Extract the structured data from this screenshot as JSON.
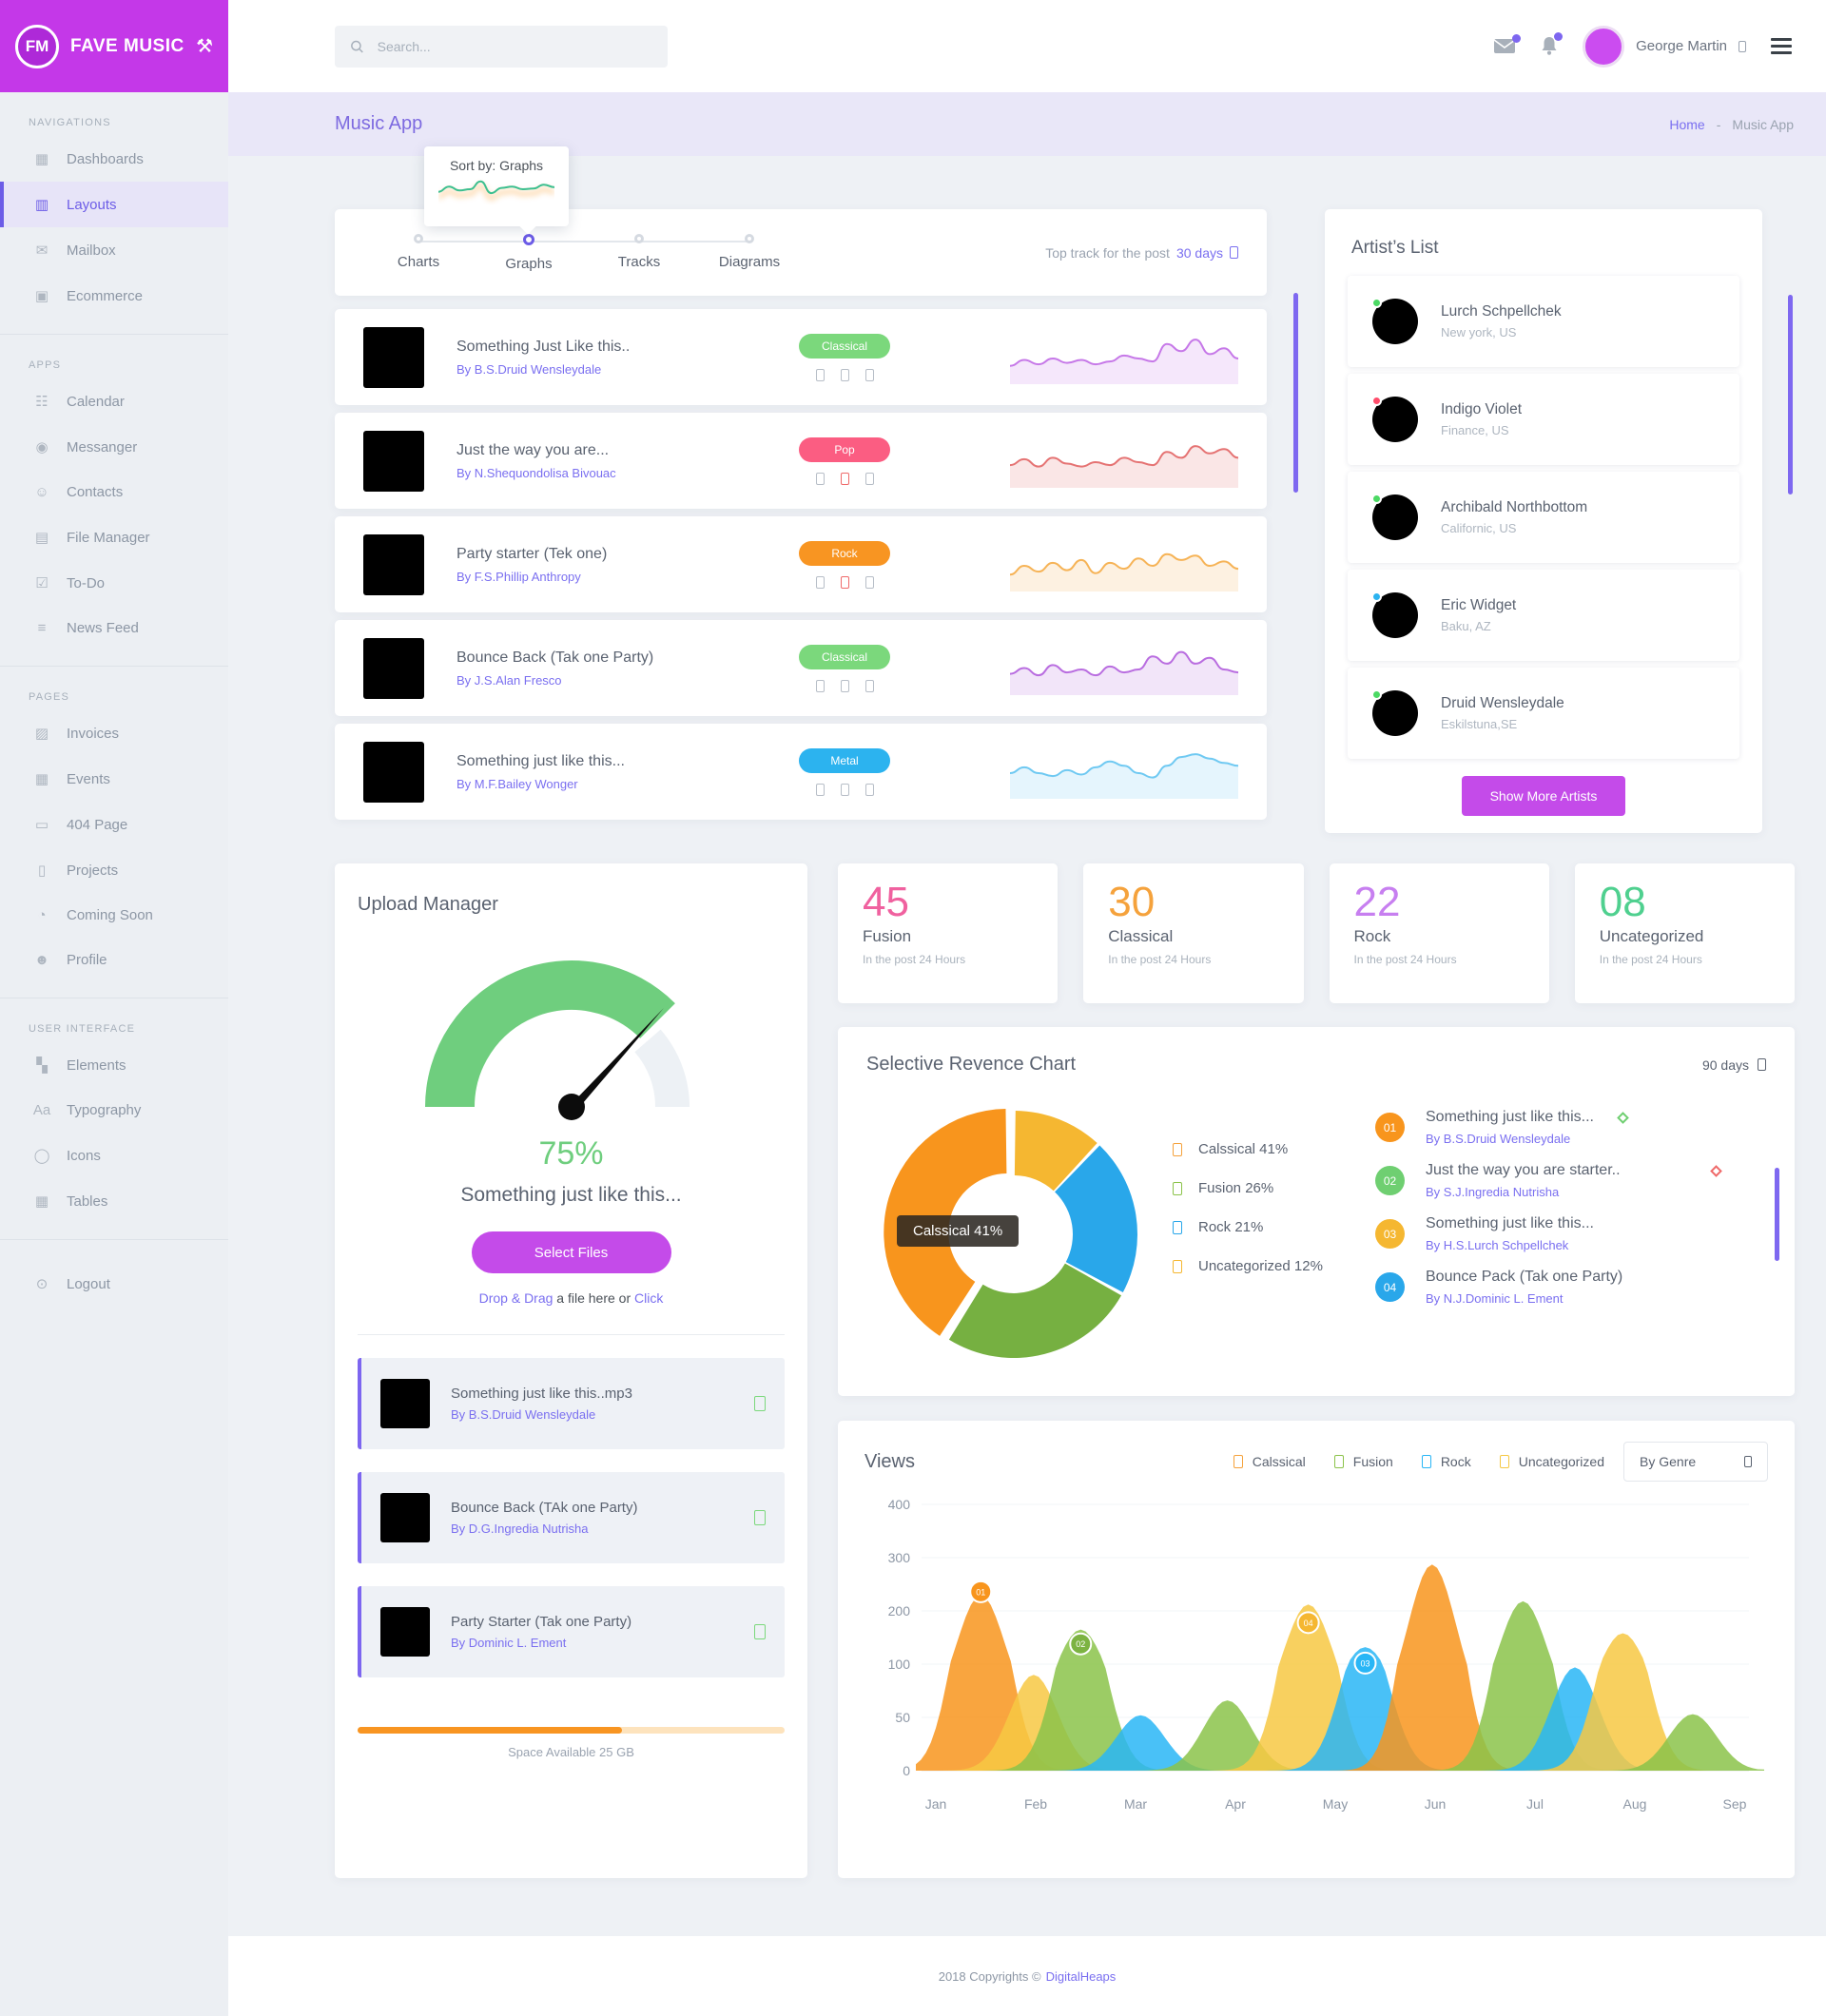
{
  "brand": {
    "initials": "FM",
    "name": "FAVE MUSIC"
  },
  "header": {
    "search_placeholder": "Search...",
    "user_name": "George Martin"
  },
  "breadcrumb": {
    "title": "Music App",
    "home": "Home",
    "separator": "-",
    "current": "Music App"
  },
  "sidebar": {
    "sections": [
      {
        "label": "NAVIGATIONS",
        "items": [
          {
            "label": "Dashboards",
            "icon": "dashboards-icon",
            "glyph": "▦",
            "active": false
          },
          {
            "label": "Layouts",
            "icon": "layouts-icon",
            "glyph": "▥",
            "active": true
          },
          {
            "label": "Mailbox",
            "icon": "mailbox-icon",
            "glyph": "✉",
            "active": false
          },
          {
            "label": "Ecommerce",
            "icon": "ecommerce-icon",
            "glyph": "▣",
            "active": false
          }
        ]
      },
      {
        "label": "APPS",
        "items": [
          {
            "label": "Calendar",
            "icon": "calendar-icon",
            "glyph": "☷",
            "active": false
          },
          {
            "label": "Messanger",
            "icon": "messenger-icon",
            "glyph": "◉",
            "active": false
          },
          {
            "label": "Contacts",
            "icon": "contacts-icon",
            "glyph": "☺",
            "active": false
          },
          {
            "label": "File Manager",
            "icon": "file-manager-icon",
            "glyph": "▤",
            "active": false
          },
          {
            "label": "To-Do",
            "icon": "todo-icon",
            "glyph": "☑",
            "active": false
          },
          {
            "label": "News Feed",
            "icon": "news-feed-icon",
            "glyph": "≡",
            "active": false
          }
        ]
      },
      {
        "label": "PAGES",
        "items": [
          {
            "label": "Invoices",
            "icon": "invoices-icon",
            "glyph": "▨",
            "active": false
          },
          {
            "label": "Events",
            "icon": "events-icon",
            "glyph": "▦",
            "active": false
          },
          {
            "label": "404 Page",
            "icon": "404-page-icon",
            "glyph": "▭",
            "active": false
          },
          {
            "label": "Projects",
            "icon": "projects-icon",
            "glyph": "▯",
            "active": false
          },
          {
            "label": "Coming Soon",
            "icon": "coming-soon-icon",
            "glyph": "◔",
            "active": false
          },
          {
            "label": "Profile",
            "icon": "profile-icon",
            "glyph": "☻",
            "active": false
          }
        ]
      },
      {
        "label": "USER INTERFACE",
        "items": [
          {
            "label": "Elements",
            "icon": "elements-icon",
            "glyph": "▚",
            "active": false
          },
          {
            "label": "Typography",
            "icon": "typography-icon",
            "glyph": "Aa",
            "active": false
          },
          {
            "label": "Icons",
            "icon": "icons-icon",
            "glyph": "◯",
            "active": false
          },
          {
            "label": "Tables",
            "icon": "tables-icon",
            "glyph": "▦",
            "active": false
          }
        ]
      }
    ],
    "logout": {
      "label": "Logout",
      "glyph": "⊙"
    }
  },
  "sort_tooltip": {
    "label": "Sort by: Graphs",
    "spark": [
      30,
      46,
      34,
      38,
      62,
      26,
      42,
      46,
      38,
      40,
      52,
      44
    ]
  },
  "stepper": {
    "steps": [
      {
        "label": "Charts",
        "active": false
      },
      {
        "label": "Graphs",
        "active": true
      },
      {
        "label": "Tracks",
        "active": false
      },
      {
        "label": "Diagrams",
        "active": false
      }
    ],
    "right_text": "Top track for the post",
    "right_link": "30 days"
  },
  "tracks": [
    {
      "title": "Something Just Like this..",
      "artist": "By B.S.Druid Wensleydale",
      "genre": "Classical",
      "genre_color": "#7bd87c",
      "spark_color": "#c678e8",
      "mid_icon_red": false,
      "spark": [
        20,
        28,
        22,
        30,
        24,
        28,
        22,
        26,
        34,
        30,
        26,
        50,
        40,
        56,
        36,
        44,
        30
      ]
    },
    {
      "title": "Just the way you are...",
      "artist": "By N.Shequondolisa Bivouac",
      "genre": "Pop",
      "genre_color": "#fb5d82",
      "spark_color": "#e57373",
      "mid_icon_red": true,
      "spark": [
        26,
        34,
        24,
        36,
        28,
        24,
        30,
        26,
        36,
        30,
        26,
        44,
        36,
        52,
        42,
        48,
        36
      ]
    },
    {
      "title": "Party starter (Tek one)",
      "artist": "By F.S.Phillip Anthropy",
      "genre": "Rock",
      "genre_color": "#f89522",
      "spark_color": "#f6b356",
      "mid_icon_red": true,
      "spark": [
        18,
        30,
        22,
        34,
        24,
        38,
        20,
        34,
        26,
        40,
        30,
        46,
        38,
        44,
        30,
        36,
        26
      ]
    },
    {
      "title": "Bounce Back (Tak one Party)",
      "artist": "By J.S.Alan Fresco",
      "genre": "Classical",
      "genre_color": "#7bd87c",
      "spark_color": "#b96de0",
      "mid_icon_red": false,
      "spark": [
        24,
        32,
        22,
        36,
        26,
        30,
        22,
        34,
        26,
        30,
        48,
        38,
        54,
        38,
        46,
        30,
        26
      ]
    },
    {
      "title": "Something just like this...",
      "artist": "By M.F.Bailey Wonger",
      "genre": "Metal",
      "genre_color": "#2cb3ef",
      "spark_color": "#6fc9f2",
      "mid_icon_red": false,
      "spark": [
        30,
        38,
        30,
        26,
        34,
        28,
        38,
        46,
        40,
        30,
        24,
        40,
        52,
        56,
        50,
        44,
        40
      ]
    }
  ],
  "artists": {
    "title": "Artist’s List",
    "items": [
      {
        "name": "Lurch Schpellchek",
        "location": "New york, US",
        "status_color": "#4cd964"
      },
      {
        "name": "Indigo Violet",
        "location": "Finance, US",
        "status_color": "#ff4d6b"
      },
      {
        "name": "Archibald Northbottom",
        "location": "Californic, US",
        "status_color": "#4cd964"
      },
      {
        "name": "Eric Widget",
        "location": "Baku, AZ",
        "status_color": "#2bb3f0"
      },
      {
        "name": "Druid Wensleydale",
        "location": "Eskilstuna,SE",
        "status_color": "#4cd964"
      }
    ],
    "button": "Show More Artists"
  },
  "upload": {
    "title": "Upload Manager",
    "percent": "75%",
    "percent_value": 75,
    "subtitle": "Something just like this...",
    "button": "Select Files",
    "drop_prefix": "Drop & Drag",
    "drop_mid": " a file here or ",
    "drop_link": "Click",
    "files": [
      {
        "title": "Something just like this..mp3",
        "artist": "By B.S.Druid Wensleydale"
      },
      {
        "title": "Bounce Back (TAk one Party)",
        "artist": "By D.G.Ingredia Nutrisha"
      },
      {
        "title": "Party Starter (Tak one Party)",
        "artist": "By Dominic L. Ement"
      }
    ],
    "space_label": "Space Available 25 GB",
    "progress_pct": 62
  },
  "stats": [
    {
      "value": "45",
      "label": "Fusion",
      "note": "In the post 24 Hours",
      "color": "#f0619f"
    },
    {
      "value": "30",
      "label": "Classical",
      "note": "In the post 24 Hours",
      "color": "#f5a23c"
    },
    {
      "value": "22",
      "label": "Rock",
      "note": "In the post 24 Hours",
      "color": "#c77ff0"
    },
    {
      "value": "08",
      "label": "Uncategorized",
      "note": "In the post 24 Hours",
      "color": "#4fd08f"
    }
  ],
  "revence": {
    "title": "Selective Revence Chart",
    "period": "90 days",
    "tooltip": "Calssical 41%",
    "legend": [
      {
        "label": "Calssical 41%",
        "color": "#f5a23c"
      },
      {
        "label": "Fusion 26%",
        "color": "#8bc34a"
      },
      {
        "label": "Rock 21%",
        "color": "#29a7ea"
      },
      {
        "label": "Uncategorized 12%",
        "color": "#f5b731"
      }
    ],
    "top_list": [
      {
        "num": "01",
        "num_color": "#f8951d",
        "title": "Something just like this...",
        "artist": "By B.S.Druid Wensleydale",
        "flag_color": "#6fcf71",
        "flag_offset": 26
      },
      {
        "num": "02",
        "num_color": "#6fcf71",
        "title": "Just the way you are starter..",
        "artist": "By S.J.Ingredia Nutrisha",
        "flag_color": "#ef6a6a",
        "flag_offset": 96
      },
      {
        "num": "03",
        "num_color": "#f5b731",
        "title": "Something just like this...",
        "artist": "By H.S.Lurch Schpellchek",
        "flag_color": null,
        "flag_offset": 0
      },
      {
        "num": "04",
        "num_color": "#29a7ea",
        "title": "Bounce Pack (Tak one Party)",
        "artist": "By N.J.Dominic L. Ement",
        "flag_color": null,
        "flag_offset": 0
      }
    ]
  },
  "views": {
    "title": "Views",
    "legend": [
      {
        "label": "Calssical",
        "color": "#f5a23c"
      },
      {
        "label": "Fusion",
        "color": "#8bc34a"
      },
      {
        "label": "Rock",
        "color": "#29b6f6"
      },
      {
        "label": "Uncategorized",
        "color": "#f5c843"
      }
    ],
    "select_label": "By Genre"
  },
  "chart_data": [
    {
      "type": "pie",
      "donut": true,
      "title": "Selective Revence Chart",
      "labels": [
        "Calssical",
        "Fusion",
        "Rock",
        "Uncategorized"
      ],
      "values": [
        41,
        26,
        21,
        12
      ],
      "tooltip": "Calssical 41%",
      "slices": [
        {
          "label": "Uncategorized",
          "value": 12,
          "color": "#f5b731",
          "explode": 0
        },
        {
          "label": "Rock",
          "value": 21,
          "color": "#29a7ea",
          "explode": 0
        },
        {
          "label": "Fusion",
          "value": 26,
          "color": "#76b041",
          "explode": 0
        },
        {
          "label": "Calssical",
          "value": 41,
          "color": "#f8951d",
          "explode": 7
        }
      ]
    },
    {
      "type": "area",
      "title": "Views",
      "x_categories": [
        "Jan",
        "Feb",
        "Mar",
        "Apr",
        "May",
        "Jun",
        "Jul",
        "Aug",
        "Sep"
      ],
      "y_ticks": [
        0,
        50,
        100,
        200,
        300,
        400
      ],
      "grid": true,
      "legend_position": "top-right",
      "hills": [
        {
          "c": 0.45,
          "p": 230,
          "color": "#f8951d",
          "badge": {
            "label": "01",
            "v": 236,
            "color": "#f8951d"
          }
        },
        {
          "c": 0.98,
          "p": 90,
          "color": "#f7c843",
          "badge": null
        },
        {
          "c": 1.45,
          "p": 165,
          "color": "#8bc34a",
          "badge": {
            "label": "02",
            "v": 138,
            "color": "#7cb342"
          }
        },
        {
          "c": 2.05,
          "p": 52,
          "color": "#29b6f6",
          "badge": null
        },
        {
          "c": 2.92,
          "p": 66,
          "color": "#8bc34a",
          "badge": null
        },
        {
          "c": 3.73,
          "p": 212,
          "color": "#f7c843",
          "badge": {
            "label": "04",
            "v": 178,
            "color": "#f5b731"
          }
        },
        {
          "c": 4.3,
          "p": 132,
          "color": "#29b6f6",
          "badge": {
            "label": "03",
            "v": 102,
            "color": "#29b6f6"
          }
        },
        {
          "c": 4.97,
          "p": 287,
          "color": "#f8951d",
          "badge": null
        },
        {
          "c": 5.88,
          "p": 218,
          "color": "#8bc34a",
          "badge": null
        },
        {
          "c": 6.4,
          "p": 97,
          "color": "#29b6f6",
          "badge": null
        },
        {
          "c": 6.88,
          "p": 158,
          "color": "#f7c843",
          "badge": null
        },
        {
          "c": 7.58,
          "p": 53,
          "color": "#8bc34a",
          "badge": null
        }
      ]
    }
  ],
  "footer": {
    "text": "2018 Copyrights ©",
    "brand": "DigitalHeaps"
  }
}
